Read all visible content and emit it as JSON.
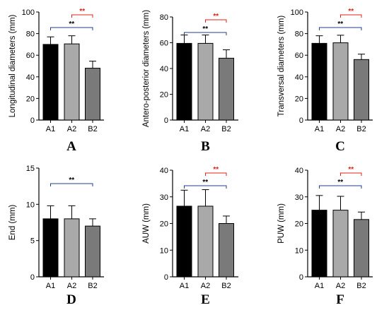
{
  "colors": {
    "bars": [
      "#000000",
      "#a9a9a9",
      "#7a7a7a"
    ],
    "blue_bracket": "#1f3f8f",
    "red_bracket": "#e0201a",
    "sig_black": "#000000"
  },
  "chart_data": [
    {
      "type": "bar",
      "panel": "A",
      "categories": [
        "A1",
        "A2",
        "B2"
      ],
      "values": [
        70,
        70.5,
        48
      ],
      "errors": [
        7,
        7.5,
        6.5
      ],
      "ylabel": "Longitudinal diameters (mm)",
      "ylim": [
        0,
        100
      ],
      "yticks": [
        0,
        20,
        40,
        60,
        80,
        100
      ],
      "significance": [
        {
          "from": 0,
          "to": 2,
          "label": "**",
          "color": "blue"
        },
        {
          "from": 1,
          "to": 2,
          "label": "**",
          "color": "red"
        }
      ]
    },
    {
      "type": "bar",
      "panel": "B",
      "categories": [
        "A1",
        "A2",
        "B2"
      ],
      "values": [
        59.5,
        59.5,
        48
      ],
      "errors": [
        6.5,
        6.5,
        6.5
      ],
      "ylabel": "Antero-posterior diameters (mm)",
      "ylim": [
        0,
        80
      ],
      "yticks": [
        0,
        20,
        40,
        60,
        80
      ],
      "significance": [
        {
          "from": 0,
          "to": 2,
          "label": "**",
          "color": "blue"
        },
        {
          "from": 1,
          "to": 2,
          "label": "**",
          "color": "red"
        }
      ]
    },
    {
      "type": "bar",
      "panel": "C",
      "categories": [
        "A1",
        "A2",
        "B2"
      ],
      "values": [
        71,
        71.5,
        56
      ],
      "errors": [
        7,
        7,
        5
      ],
      "ylabel": "Transversal diameters (mm)",
      "ylim": [
        0,
        100
      ],
      "yticks": [
        0,
        20,
        40,
        60,
        80,
        100
      ],
      "significance": [
        {
          "from": 0,
          "to": 2,
          "label": "**",
          "color": "blue"
        },
        {
          "from": 1,
          "to": 2,
          "label": "**",
          "color": "red"
        }
      ]
    },
    {
      "type": "bar",
      "panel": "D",
      "categories": [
        "A1",
        "A2",
        "B2"
      ],
      "values": [
        8,
        8,
        7
      ],
      "errors": [
        1.8,
        1.8,
        1
      ],
      "ylabel": "End (mm)",
      "ylim": [
        0,
        15
      ],
      "yticks": [
        0,
        5,
        10,
        15
      ],
      "significance": [
        {
          "from": 0,
          "to": 2,
          "label": "**",
          "color": "blue"
        }
      ]
    },
    {
      "type": "bar",
      "panel": "E",
      "categories": [
        "A1",
        "A2",
        "B2"
      ],
      "values": [
        26.5,
        26.5,
        20
      ],
      "errors": [
        6,
        6.2,
        2.8
      ],
      "ylabel": "AUW (mm)",
      "ylim": [
        0,
        40
      ],
      "yticks": [
        0,
        10,
        20,
        30,
        40
      ],
      "significance": [
        {
          "from": 0,
          "to": 2,
          "label": "**",
          "color": "blue"
        },
        {
          "from": 1,
          "to": 2,
          "label": "**",
          "color": "red"
        }
      ]
    },
    {
      "type": "bar",
      "panel": "F",
      "categories": [
        "A1",
        "A2",
        "B2"
      ],
      "values": [
        25,
        25,
        21.5
      ],
      "errors": [
        5.5,
        5.2,
        2.8
      ],
      "ylabel": "PUW (mm)",
      "ylim": [
        0,
        40
      ],
      "yticks": [
        0,
        10,
        20,
        30,
        40
      ],
      "significance": [
        {
          "from": 0,
          "to": 2,
          "label": "**",
          "color": "blue"
        },
        {
          "from": 1,
          "to": 2,
          "label": "**",
          "color": "red"
        }
      ]
    }
  ]
}
